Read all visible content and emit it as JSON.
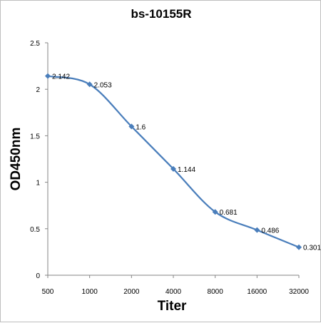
{
  "chart_data": {
    "type": "line",
    "title": "bs-10155R",
    "xlabel": "Titer",
    "ylabel": "OD450nm",
    "categories": [
      "500",
      "1000",
      "2000",
      "4000",
      "8000",
      "16000",
      "32000"
    ],
    "series": [
      {
        "values": [
          2.142,
          2.053,
          1.6,
          1.144,
          0.681,
          0.486,
          0.301
        ],
        "labels": [
          "2.142",
          "2.053",
          "1.6",
          "1.144",
          "0.681",
          "0.486",
          "0.301"
        ]
      }
    ],
    "ylim": [
      0,
      2.5
    ],
    "yticks": [
      "0",
      "0.5",
      "1",
      "1.5",
      "2",
      "2.5"
    ],
    "grid": false,
    "legend": "none",
    "line_color": "#4a7ebb",
    "marker": "diamond"
  }
}
